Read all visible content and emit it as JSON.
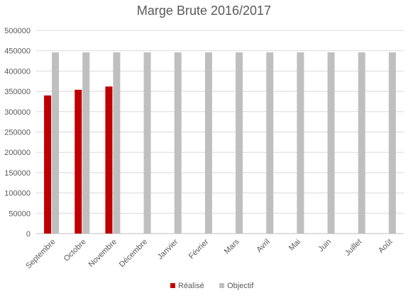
{
  "chart_data": {
    "type": "bar",
    "title": "Marge Brute 2016/2017",
    "categories": [
      "Septembre",
      "Octobre",
      "Novembre",
      "Décembre",
      "Janvier",
      "Février",
      "Mars",
      "Avril",
      "Mai",
      "Juin",
      "Juillet",
      "Août"
    ],
    "series": [
      {
        "name": "Réalisé",
        "color": "#c00000",
        "values": [
          340000,
          354000,
          362000,
          null,
          null,
          null,
          null,
          null,
          null,
          null,
          null,
          null
        ]
      },
      {
        "name": "Objectif",
        "color": "#bfbfbf",
        "values": [
          446000,
          446000,
          446000,
          446000,
          446000,
          446000,
          446000,
          446000,
          446000,
          446000,
          446000,
          446000
        ]
      }
    ],
    "ylim": [
      0,
      500000
    ],
    "yticks": [
      "0",
      "50000",
      "100000",
      "150000",
      "200000",
      "250000",
      "300000",
      "350000",
      "400000",
      "450000",
      "500000"
    ],
    "grid": true,
    "legend_position": "bottom"
  }
}
